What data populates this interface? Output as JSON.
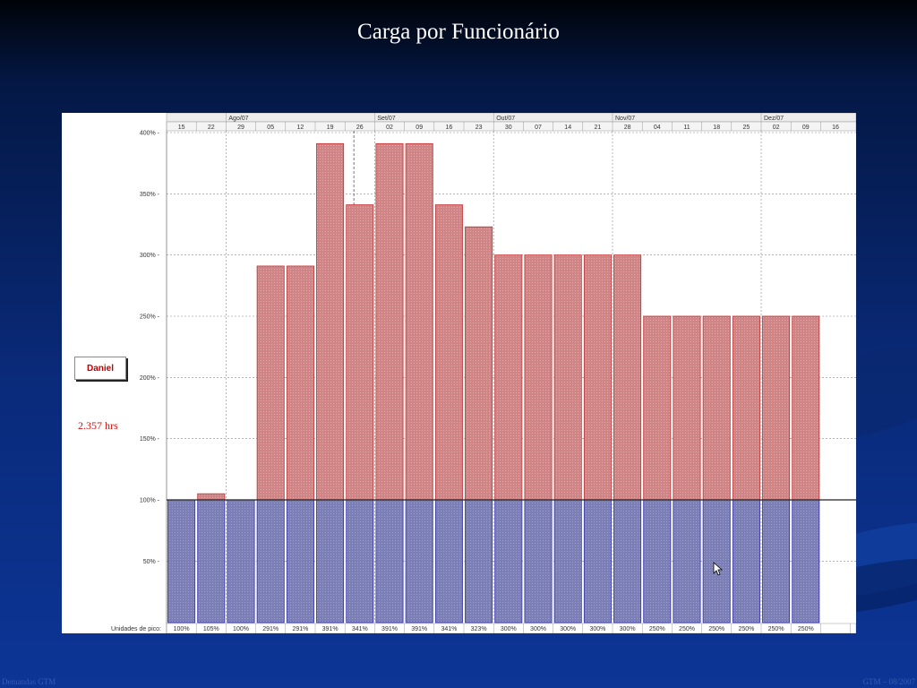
{
  "slide": {
    "title": "Carga por Funcionário",
    "footer_left": "Demandas GTM",
    "footer_right": "GTM – 08/2007"
  },
  "resource": {
    "name": "Daniel",
    "hours": "2.357 hrs"
  },
  "chart_data": {
    "type": "bar",
    "months": [
      {
        "label": "Ago/07",
        "start_week": 2
      },
      {
        "label": "Set/07",
        "start_week": 7
      },
      {
        "label": "Out/07",
        "start_week": 11
      },
      {
        "label": "Nov/07",
        "start_week": 15
      },
      {
        "label": "Dez/07",
        "start_week": 20
      }
    ],
    "weeks": [
      "15",
      "22",
      "29",
      "05",
      "12",
      "19",
      "26",
      "02",
      "09",
      "16",
      "23",
      "30",
      "07",
      "14",
      "21",
      "28",
      "04",
      "11",
      "18",
      "25",
      "02",
      "09",
      "16"
    ],
    "categories": [
      "15",
      "22",
      "29",
      "05",
      "12",
      "19",
      "26",
      "02",
      "09",
      "16",
      "23",
      "30",
      "07",
      "14",
      "21",
      "28",
      "04",
      "11",
      "18",
      "25",
      "02",
      "09"
    ],
    "values": [
      100,
      105,
      100,
      291,
      291,
      391,
      341,
      391,
      391,
      341,
      323,
      300,
      300,
      300,
      300,
      300,
      250,
      250,
      250,
      250,
      250,
      250
    ],
    "peak_units_label": "Unidades de pico:",
    "peak_units": [
      "100%",
      "105%",
      "100%",
      "291%",
      "291%",
      "391%",
      "341%",
      "391%",
      "391%",
      "341%",
      "323%",
      "300%",
      "300%",
      "300%",
      "300%",
      "300%",
      "250%",
      "250%",
      "250%",
      "250%",
      "250%",
      "250%"
    ],
    "y_ticks": [
      "400%",
      "350%",
      "300%",
      "250%",
      "200%",
      "150%",
      "100%",
      "50%"
    ],
    "ylim": [
      0,
      410
    ],
    "capacity": 100,
    "colors": {
      "allocated": "#7b7fb6",
      "allocated_border": "#2f2fb0",
      "overallocated": "#cf8585",
      "overallocated_border": "#c42f2f",
      "grid": "#888888",
      "header_bg": "#ececec"
    }
  }
}
